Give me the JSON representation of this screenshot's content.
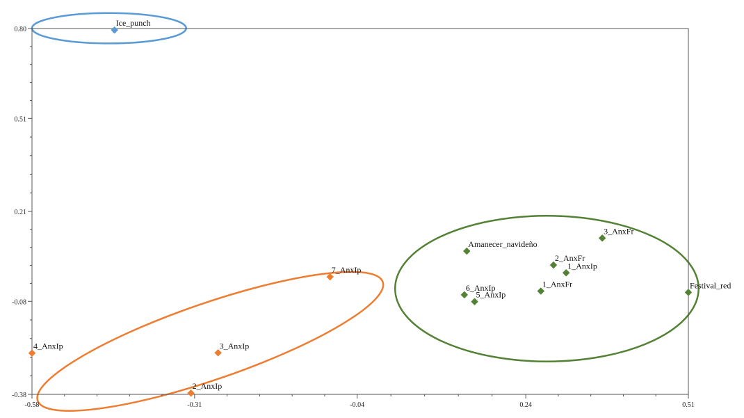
{
  "colors": {
    "background": "#ffffff",
    "axis": "#555555",
    "text": "#111111",
    "blue_group": "#5b9bd5",
    "orange_group": "#ed7d31",
    "green_group": "#548235"
  },
  "chart_data": {
    "type": "scatter",
    "title": "",
    "xlabel": "",
    "ylabel": "",
    "xlim": [
      -0.58,
      0.51
    ],
    "ylim": [
      -0.38,
      0.8
    ],
    "x_ticks": [
      {
        "value": -0.58,
        "label": "-0.58"
      },
      {
        "value": -0.31,
        "label": "-0.31"
      },
      {
        "value": -0.04,
        "label": "-0.04"
      },
      {
        "value": 0.24,
        "label": "0.24"
      },
      {
        "value": 0.51,
        "label": "0.51"
      }
    ],
    "y_ticks": [
      {
        "value": 0.8,
        "label": "0.80"
      },
      {
        "value": 0.51,
        "label": "0.51"
      },
      {
        "value": 0.21,
        "label": "0.21"
      },
      {
        "value": -0.08,
        "label": "-0.08"
      },
      {
        "value": -0.38,
        "label": "-0.38"
      }
    ],
    "grid": false,
    "groups": [
      {
        "key": "blue",
        "color": "#5b9bd5",
        "ellipse": {
          "cx": -0.452,
          "cy": 0.801,
          "rx": 0.128,
          "ry": 0.049
        }
      },
      {
        "key": "orange",
        "color": "#ed7d31",
        "ellipse": {
          "cx": -0.284,
          "cy": -0.209,
          "rx": 0.303,
          "ry": 0.123,
          "angle": -19
        }
      },
      {
        "key": "green",
        "color": "#548235",
        "ellipse": {
          "cx": 0.275,
          "cy": -0.039,
          "rx": 0.252,
          "ry": 0.235
        }
      }
    ],
    "points": [
      {
        "label": "Ice_punch",
        "x": -0.443,
        "y": 0.795,
        "group": "blue"
      },
      {
        "label": "7_AnxIp",
        "x": -0.085,
        "y": -0.001,
        "group": "orange"
      },
      {
        "label": "4_AnxIp",
        "x": -0.58,
        "y": -0.247,
        "group": "orange"
      },
      {
        "label": "3_AnxIp",
        "x": -0.271,
        "y": -0.246,
        "group": "orange"
      },
      {
        "label": "2_AnxIp",
        "x": -0.316,
        "y": -0.376,
        "group": "orange"
      },
      {
        "label": "Amanecer_navideño",
        "x": 0.142,
        "y": 0.082,
        "group": "green"
      },
      {
        "label": "3_AnxFr",
        "x": 0.367,
        "y": 0.124,
        "group": "green"
      },
      {
        "label": "2_AnxFr",
        "x": 0.286,
        "y": 0.037,
        "group": "green"
      },
      {
        "label": "1_AnxIp",
        "x": 0.307,
        "y": 0.012,
        "group": "green"
      },
      {
        "label": "1_AnxFr",
        "x": 0.265,
        "y": -0.047,
        "group": "green"
      },
      {
        "label": "6_AnxIp",
        "x": 0.138,
        "y": -0.059,
        "group": "green"
      },
      {
        "label": "5_AnxIp",
        "x": 0.155,
        "y": -0.081,
        "group": "green"
      },
      {
        "label": "Festival_red",
        "x": 0.51,
        "y": -0.051,
        "group": "green"
      }
    ]
  }
}
